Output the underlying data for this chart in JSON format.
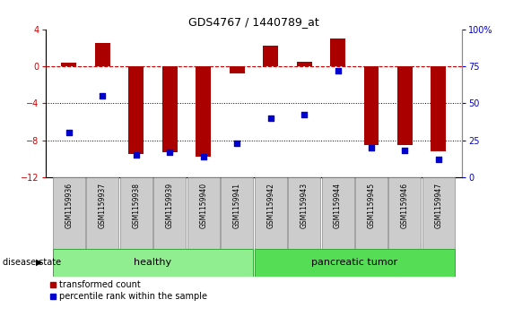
{
  "title": "GDS4767 / 1440789_at",
  "samples": [
    "GSM1159936",
    "GSM1159937",
    "GSM1159938",
    "GSM1159939",
    "GSM1159940",
    "GSM1159941",
    "GSM1159942",
    "GSM1159943",
    "GSM1159944",
    "GSM1159945",
    "GSM1159946",
    "GSM1159947"
  ],
  "transformed_count": [
    0.4,
    2.5,
    -9.5,
    -9.3,
    -9.8,
    -0.8,
    2.2,
    0.5,
    3.0,
    -8.5,
    -8.5,
    -9.2
  ],
  "percentile_rank": [
    30,
    55,
    15,
    17,
    14,
    23,
    40,
    42,
    72,
    20,
    18,
    12
  ],
  "ylim_left": [
    -12,
    4
  ],
  "ylim_right": [
    0,
    100
  ],
  "yticks_left": [
    -12,
    -8,
    -4,
    0,
    4
  ],
  "yticks_right": [
    0,
    25,
    50,
    75,
    100
  ],
  "bar_color": "#aa0000",
  "dot_color": "#0000cc",
  "healthy_indices": [
    0,
    1,
    2,
    3,
    4,
    5
  ],
  "tumor_indices": [
    6,
    7,
    8,
    9,
    10,
    11
  ],
  "healthy_color": "#90ee90",
  "tumor_color": "#55dd55",
  "group_label_healthy": "healthy",
  "group_label_tumor": "pancreatic tumor",
  "disease_state_label": "disease state",
  "legend_bar_label": "transformed count",
  "legend_dot_label": "percentile rank within the sample",
  "hline_color": "#cc0000",
  "grid_color": "#000000",
  "bg_color": "#ffffff",
  "plot_bg_color": "#ffffff",
  "tick_label_color_left": "#cc0000",
  "tick_label_color_right": "#0000cc",
  "label_box_color": "#cccccc",
  "label_box_edge": "#888888"
}
